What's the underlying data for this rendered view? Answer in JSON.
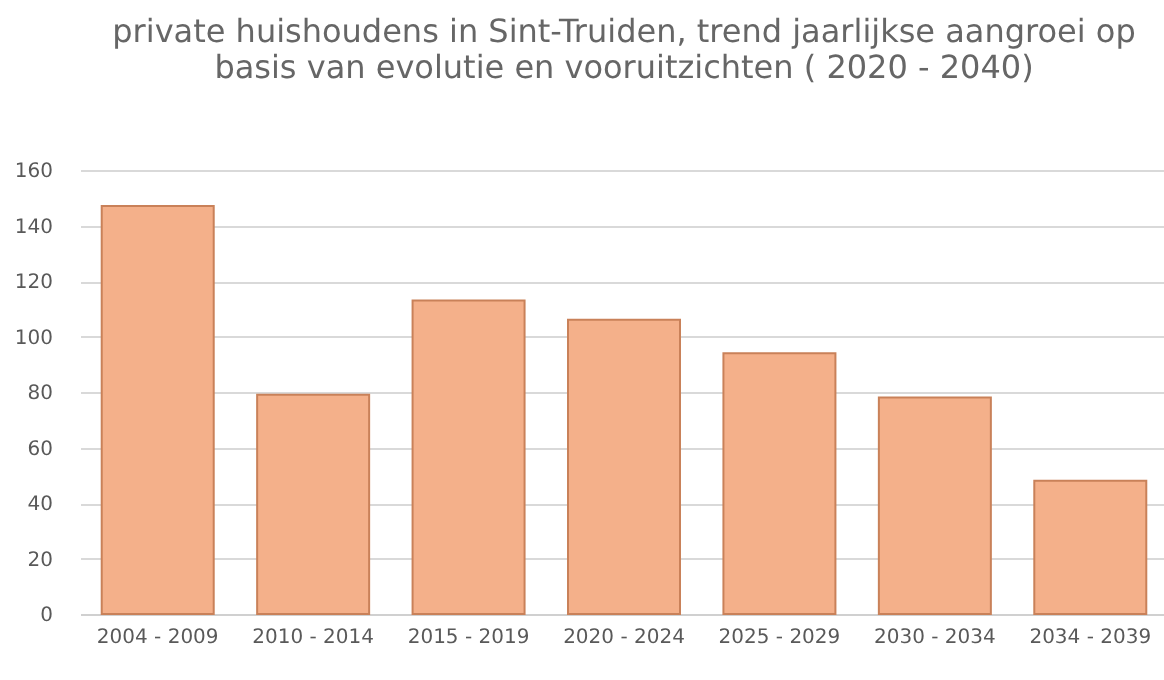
{
  "chart_data": {
    "type": "bar",
    "title": "private huishoudens in Sint-Truiden, trend jaarlijkse aangroei op\nbasis van evolutie en vooruitzichten ( 2020 - 2040)",
    "categories": [
      "2004 - 2009",
      "2010 - 2014",
      "2015 - 2019",
      "2020 - 2024",
      "2025 - 2029",
      "2030 - 2034",
      "2034 - 2039"
    ],
    "values": [
      147,
      79,
      113,
      106,
      94,
      78,
      48
    ],
    "color": "#f4b08a",
    "ylim": [
      0,
      160
    ],
    "yticks": [
      0,
      20,
      40,
      60,
      80,
      100,
      120,
      140,
      160
    ],
    "grid": "y"
  }
}
